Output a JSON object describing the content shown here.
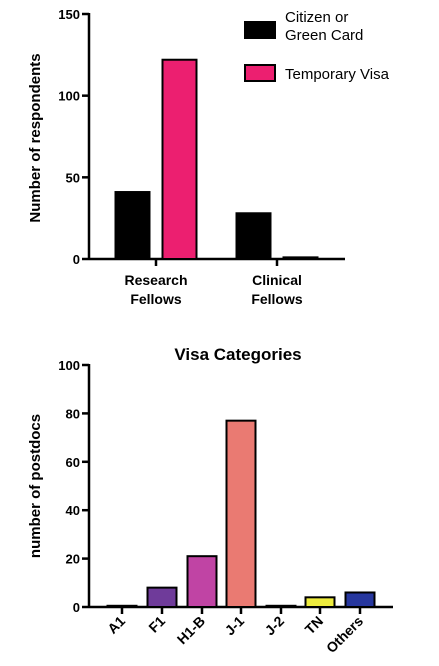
{
  "chart_data": [
    {
      "type": "bar",
      "title": "",
      "ylabel": "Number of respondents",
      "xlabel": "",
      "ylim": [
        0,
        150
      ],
      "yticks": [
        0,
        50,
        100,
        150
      ],
      "categories": [
        [
          "Research",
          "Fellows"
        ],
        [
          "Clinical",
          "Fellows"
        ]
      ],
      "series": [
        {
          "name": [
            "Citizen or",
            "Green Card"
          ],
          "color": "#000000",
          "values": [
            41,
            28
          ]
        },
        {
          "name": [
            "Temporary Visa"
          ],
          "color": "#ec1f70",
          "values": [
            122,
            1
          ]
        }
      ],
      "legend": "top-right"
    },
    {
      "type": "bar",
      "title": "Visa Categories",
      "ylabel": "number of postdocs",
      "xlabel": "",
      "ylim": [
        0,
        100
      ],
      "yticks": [
        0,
        20,
        40,
        60,
        80,
        100
      ],
      "categories": [
        "A1",
        "F1",
        "H1-B",
        "J-1",
        "J-2",
        "TN",
        "Others"
      ],
      "values": [
        0.5,
        8,
        21,
        77,
        0.5,
        4,
        6
      ],
      "colors": [
        "#7d6f8f",
        "#6f3b9a",
        "#c044a4",
        "#ea7a72",
        "#777777",
        "#eeec3e",
        "#27379e"
      ]
    }
  ]
}
